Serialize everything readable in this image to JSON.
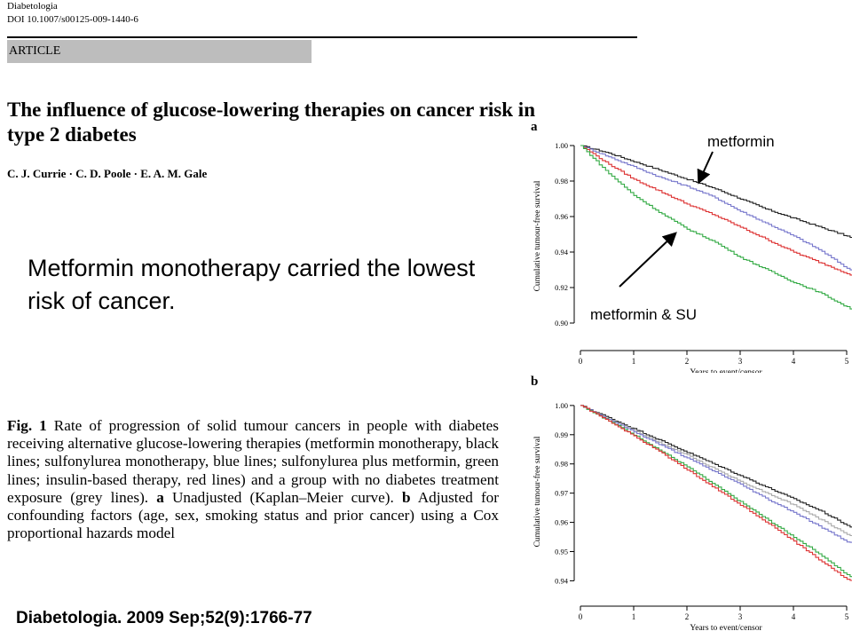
{
  "header": {
    "journal": "Diabetologia",
    "doi": "DOI 10.1007/s00125-009-1440-6",
    "section": "ARTICLE"
  },
  "paper": {
    "title": "The influence of glucose-lowering therapies on cancer risk in type 2 diabetes",
    "authors": "C. J. Currie · C. D. Poole · E. A. M. Gale"
  },
  "callout": "Metformin monotherapy carried the lowest risk of cancer.",
  "caption": {
    "fig_label": "Fig. 1",
    "text_part1": " Rate of progression of solid tumour cancers in people with diabetes receiving alternative glucose-lowering therapies (metformin monotherapy, black lines; sulfonylurea monotherapy, blue lines; sulfonylurea plus metformin, green lines; insulin-based therapy, red lines) and a group with no diabetes treatment exposure (grey lines). ",
    "a_label": "a",
    "text_part2": " Unadjusted (Kaplan–Meier curve). ",
    "b_label": "b",
    "text_part3": " Adjusted for confounding factors (age, sex, smoking status and prior cancer) using a Cox proportional hazards model"
  },
  "citation": "Diabetologia. 2009 Sep;52(9):1766-77",
  "annotations": {
    "metformin": "metformin",
    "metformin_su": "metformin & SU"
  },
  "colors": {
    "metformin": "#222222",
    "sulfonylurea": "#7777cc",
    "su_plus_metformin": "#33aa44",
    "insulin": "#dd3333",
    "no_treatment": "#aaaaaa",
    "header_bar": "#bdbdbd"
  },
  "chart_data": [
    {
      "type": "line",
      "panel_label": "a",
      "xlabel": "Years to event/censor",
      "ylabel": "Cumulative tumour-free survival",
      "xlim": [
        0,
        5.3
      ],
      "ylim": [
        0.895,
        1.003
      ],
      "xticks": [
        0,
        1,
        2,
        3,
        4,
        5
      ],
      "yticks": [
        0.9,
        0.92,
        0.94,
        0.96,
        0.98,
        1.0
      ],
      "ytick_labels": [
        "0.90",
        "0.92",
        "0.94",
        "0.96",
        "0.98",
        "1.00"
      ],
      "grid": false,
      "series": [
        {
          "color_key": "metformin",
          "x": [
            0,
            0.5,
            1,
            1.5,
            2,
            2.5,
            3,
            3.5,
            4,
            4.5,
            5,
            5.3
          ],
          "y": [
            1.0,
            0.996,
            0.991,
            0.986,
            0.981,
            0.976,
            0.97,
            0.964,
            0.959,
            0.954,
            0.949,
            0.945
          ]
        },
        {
          "color_key": "sulfonylurea",
          "x": [
            0,
            0.5,
            1,
            1.5,
            2,
            2.5,
            3,
            3.5,
            4,
            4.5,
            5,
            5.3
          ],
          "y": [
            1.0,
            0.994,
            0.988,
            0.982,
            0.977,
            0.971,
            0.963,
            0.956,
            0.949,
            0.941,
            0.931,
            0.925
          ]
        },
        {
          "color_key": "insulin",
          "x": [
            0,
            0.5,
            1,
            1.5,
            2,
            2.5,
            3,
            3.5,
            4,
            4.5,
            5,
            5.3
          ],
          "y": [
            1.0,
            0.99,
            0.981,
            0.974,
            0.967,
            0.961,
            0.954,
            0.947,
            0.94,
            0.934,
            0.928,
            0.925
          ]
        },
        {
          "color_key": "su_plus_metformin",
          "x": [
            0,
            0.5,
            1,
            1.5,
            2,
            2.5,
            3,
            3.5,
            4,
            4.5,
            5,
            5.3
          ],
          "y": [
            1.0,
            0.985,
            0.972,
            0.962,
            0.953,
            0.946,
            0.937,
            0.93,
            0.923,
            0.917,
            0.909,
            0.905
          ]
        }
      ]
    },
    {
      "type": "line",
      "panel_label": "b",
      "xlabel": "Years to event/censor",
      "ylabel": "Cumulative tumour-free survival",
      "xlim": [
        0,
        5.3
      ],
      "ylim": [
        0.938,
        1.003
      ],
      "xticks": [
        0,
        1,
        2,
        3,
        4,
        5
      ],
      "yticks": [
        0.94,
        0.95,
        0.96,
        0.97,
        0.98,
        0.99,
        1.0
      ],
      "ytick_labels": [
        "0.94",
        "0.95",
        "0.96",
        "0.97",
        "0.98",
        "0.99",
        "1.00"
      ],
      "grid": false,
      "series": [
        {
          "color_key": "metformin",
          "x": [
            0,
            0.5,
            1,
            1.5,
            2,
            2.5,
            3,
            3.5,
            4,
            4.5,
            5,
            5.3
          ],
          "y": [
            1.0,
            0.996,
            0.992,
            0.988,
            0.984,
            0.98,
            0.976,
            0.972,
            0.968,
            0.964,
            0.959,
            0.956
          ]
        },
        {
          "color_key": "no_treatment",
          "x": [
            0,
            0.5,
            1,
            1.5,
            2,
            2.5,
            3,
            3.5,
            4,
            4.5,
            5,
            5.3
          ],
          "y": [
            1.0,
            0.9955,
            0.9915,
            0.987,
            0.983,
            0.9785,
            0.974,
            0.97,
            0.966,
            0.961,
            0.956,
            0.953
          ]
        },
        {
          "color_key": "sulfonylurea",
          "x": [
            0,
            0.5,
            1,
            1.5,
            2,
            2.5,
            3,
            3.5,
            4,
            4.5,
            5,
            5.3
          ],
          "y": [
            1.0,
            0.9955,
            0.991,
            0.9865,
            0.982,
            0.9775,
            0.973,
            0.968,
            0.9635,
            0.9585,
            0.9535,
            0.951
          ]
        },
        {
          "color_key": "su_plus_metformin",
          "x": [
            0,
            0.5,
            1,
            1.5,
            2,
            2.5,
            3,
            3.5,
            4,
            4.5,
            5,
            5.3
          ],
          "y": [
            1.0,
            0.995,
            0.99,
            0.9845,
            0.979,
            0.973,
            0.967,
            0.961,
            0.955,
            0.949,
            0.942,
            0.94
          ]
        },
        {
          "color_key": "insulin",
          "x": [
            0,
            0.5,
            1,
            1.5,
            2,
            2.5,
            3,
            3.5,
            4,
            4.5,
            5,
            5.3
          ],
          "y": [
            1.0,
            0.995,
            0.9895,
            0.984,
            0.978,
            0.972,
            0.966,
            0.96,
            0.9535,
            0.947,
            0.9405,
            0.939
          ]
        }
      ]
    }
  ]
}
